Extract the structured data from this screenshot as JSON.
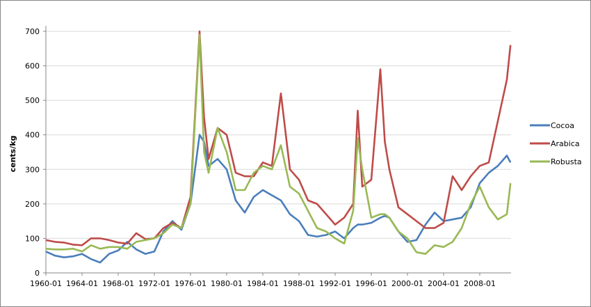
{
  "chart_data": {
    "type": "line",
    "title": "",
    "xlabel": "",
    "ylabel": "cents/kg",
    "ylim": [
      0,
      700
    ],
    "yticks": [
      0,
      100,
      200,
      300,
      400,
      500,
      600,
      700
    ],
    "xticks": [
      "1960-01",
      "1964-01",
      "1968-01",
      "1972-01",
      "1976-01",
      "1980-01",
      "1984-01",
      "1988-01",
      "1992-01",
      "1996-01",
      "2000-01",
      "2004-01",
      "2008-01"
    ],
    "grid": "horizontal",
    "legend_position": "right",
    "x": [
      1960,
      1961,
      1962,
      1963,
      1964,
      1965,
      1966,
      1967,
      1968,
      1969,
      1970,
      1971,
      1972,
      1973,
      1974,
      1975,
      1976,
      1977,
      1977.5,
      1978,
      1979,
      1980,
      1981,
      1982,
      1983,
      1984,
      1985,
      1986,
      1987,
      1988,
      1989,
      1990,
      1991,
      1992,
      1993,
      1994,
      1994.5,
      1995,
      1996,
      1997,
      1997.5,
      1998,
      1999,
      2000,
      2001,
      2002,
      2003,
      2004,
      2005,
      2006,
      2007,
      2008,
      2009,
      2010,
      2011,
      2011.4
    ],
    "series": [
      {
        "name": "Cocoa",
        "color": "#4a7ebb",
        "values": [
          62,
          50,
          45,
          48,
          55,
          40,
          30,
          55,
          65,
          90,
          68,
          55,
          62,
          120,
          150,
          125,
          200,
          400,
          380,
          310,
          330,
          300,
          210,
          175,
          220,
          240,
          225,
          210,
          170,
          150,
          110,
          105,
          110,
          120,
          100,
          130,
          140,
          140,
          145,
          160,
          165,
          160,
          120,
          90,
          95,
          140,
          175,
          150,
          155,
          160,
          190,
          260,
          290,
          310,
          340,
          320
        ]
      },
      {
        "name": "Arabica",
        "color": "#be4b48",
        "values": [
          95,
          90,
          88,
          82,
          80,
          100,
          100,
          95,
          88,
          85,
          115,
          98,
          100,
          130,
          145,
          130,
          220,
          700,
          450,
          330,
          420,
          400,
          290,
          280,
          280,
          320,
          310,
          520,
          300,
          270,
          210,
          200,
          170,
          140,
          160,
          200,
          470,
          250,
          270,
          590,
          380,
          300,
          190,
          170,
          150,
          130,
          130,
          145,
          280,
          240,
          280,
          310,
          320,
          440,
          560,
          660
        ]
      },
      {
        "name": "Robusta",
        "color": "#98b954",
        "values": [
          70,
          68,
          68,
          70,
          62,
          80,
          70,
          75,
          75,
          70,
          90,
          95,
          100,
          115,
          140,
          130,
          200,
          690,
          350,
          290,
          420,
          350,
          240,
          240,
          290,
          310,
          300,
          370,
          250,
          230,
          180,
          130,
          120,
          100,
          85,
          180,
          390,
          300,
          160,
          170,
          170,
          160,
          120,
          100,
          60,
          55,
          80,
          75,
          90,
          130,
          200,
          250,
          190,
          155,
          170,
          260
        ]
      }
    ]
  },
  "legend": {
    "items": [
      {
        "label": "Cocoa",
        "color": "#4a7ebb"
      },
      {
        "label": "Arabica",
        "color": "#be4b48"
      },
      {
        "label": "Robusta",
        "color": "#98b954"
      }
    ]
  }
}
